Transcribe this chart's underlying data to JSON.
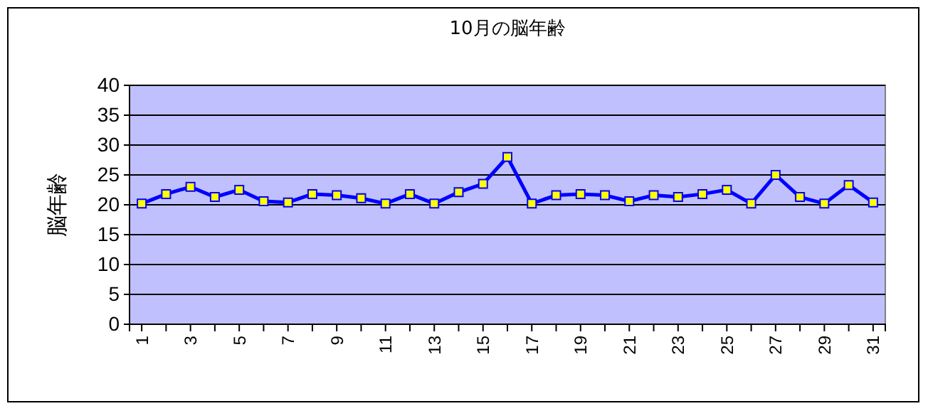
{
  "chart_data": {
    "type": "line",
    "title": "10月の脳年齢",
    "ylabel": "脳年齢",
    "categories": [
      "1",
      null,
      "3",
      null,
      "5",
      null,
      "7",
      null,
      "9",
      null,
      "11",
      null,
      "13",
      null,
      "15",
      null,
      "17",
      null,
      "19",
      null,
      "21",
      null,
      "23",
      null,
      "25",
      null,
      "27",
      null,
      "29",
      null,
      "31"
    ],
    "series": [
      {
        "color": "#0000ff",
        "values": [
          20.2,
          21.8,
          23.0,
          21.3,
          22.5,
          20.6,
          20.4,
          21.8,
          21.6,
          21.1,
          20.2,
          21.8,
          20.2,
          22.1,
          23.5,
          28.0,
          20.2,
          21.6,
          21.8,
          21.6,
          20.6,
          21.6,
          21.3,
          21.8,
          22.5,
          20.2,
          25.0,
          21.3,
          20.2,
          23.3,
          20.4
        ]
      }
    ],
    "ylim": [
      0,
      40
    ],
    "yticks": [
      0,
      5,
      10,
      15,
      20,
      25,
      30,
      35,
      40
    ],
    "grid": "y",
    "marker": "square",
    "line_style": "solid"
  }
}
